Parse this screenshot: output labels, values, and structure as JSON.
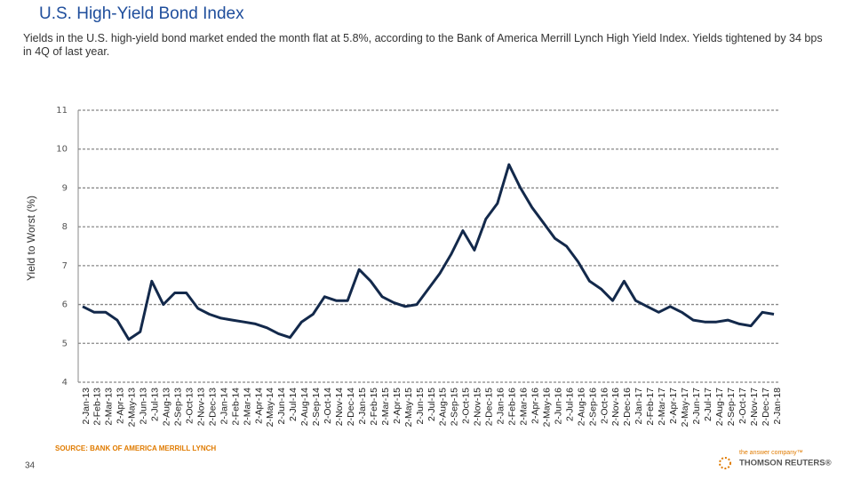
{
  "chart_data": {
    "type": "line",
    "title": "U.S. High-Yield Bond Index",
    "subtitle": "Yields in the U.S. high-yield bond market ended the month flat at 5.8%, according to the Bank of America Merrill Lynch High Yield Index. Yields tightened by 34 bps in 4Q of last year.",
    "y_label": "Yield to Worst (%)",
    "source": "SOURCE: BANK OF AMERICA MERRILL LYNCH",
    "categories": [
      "2-Jan-13",
      "2-Feb-13",
      "2-Mar-13",
      "2-Apr-13",
      "2-May-13",
      "2-Jun-13",
      "2-Jul-13",
      "2-Aug-13",
      "2-Sep-13",
      "2-Oct-13",
      "2-Nov-13",
      "2-Dec-13",
      "2-Jan-14",
      "2-Feb-14",
      "2-Mar-14",
      "2-Apr-14",
      "2-May-14",
      "2-Jun-14",
      "2-Jul-14",
      "2-Aug-14",
      "2-Sep-14",
      "2-Oct-14",
      "2-Nov-14",
      "2-Dec-14",
      "2-Jan-15",
      "2-Feb-15",
      "2-Mar-15",
      "2-Apr-15",
      "2-May-15",
      "2-Jun-15",
      "2-Jul-15",
      "2-Aug-15",
      "2-Sep-15",
      "2-Oct-15",
      "2-Nov-15",
      "2-Dec-15",
      "2-Jan-16",
      "2-Feb-16",
      "2-Mar-16",
      "2-Apr-16",
      "2-May-16",
      "2-Jun-16",
      "2-Jul-16",
      "2-Aug-16",
      "2-Sep-16",
      "2-Oct-16",
      "2-Nov-16",
      "2-Dec-16",
      "2-Jan-17",
      "2-Feb-17",
      "2-Mar-17",
      "2-Apr-17",
      "2-May-17",
      "2-Jun-17",
      "2-Jul-17",
      "2-Aug-17",
      "2-Sep-17",
      "2-Oct-17",
      "2-Nov-17",
      "2-Dec-17",
      "2-Jan-18"
    ],
    "values": [
      5.95,
      5.8,
      5.8,
      5.6,
      5.1,
      5.3,
      6.6,
      6.0,
      6.3,
      6.3,
      5.9,
      5.75,
      5.65,
      5.6,
      5.55,
      5.5,
      5.4,
      5.25,
      5.15,
      5.55,
      5.75,
      6.2,
      6.1,
      6.1,
      6.9,
      6.6,
      6.2,
      6.05,
      5.95,
      6.0,
      6.4,
      6.8,
      7.3,
      7.9,
      7.4,
      8.2,
      8.6,
      9.6,
      9.0,
      8.5,
      8.1,
      7.7,
      7.5,
      7.1,
      6.6,
      6.4,
      6.1,
      6.6,
      6.1,
      5.95,
      5.8,
      5.95,
      5.8,
      5.6,
      5.55,
      5.55,
      5.6,
      5.5,
      5.45,
      5.8,
      5.75
    ],
    "color": "#13294b",
    "ylim": [
      4,
      11
    ],
    "yticks": [
      4,
      5,
      6,
      7,
      8,
      9,
      10,
      11
    ],
    "grid": true
  },
  "footer": {
    "page_number": "34",
    "logo_tagline": "the answer company™",
    "logo_name": "THOMSON REUTERS®"
  }
}
